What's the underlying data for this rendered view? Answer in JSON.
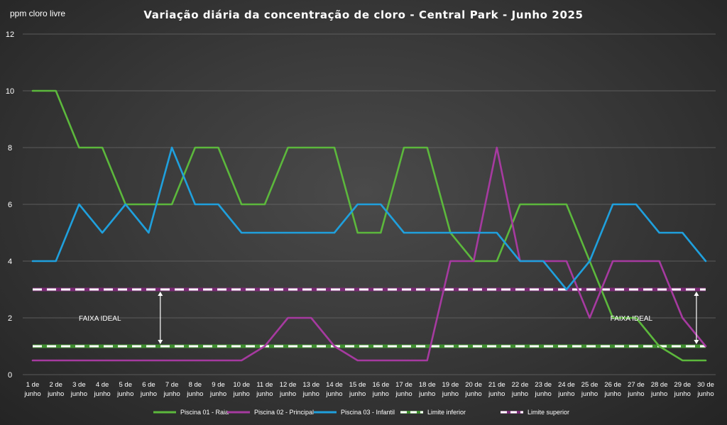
{
  "chart_data": {
    "type": "line",
    "title": "Variação diária da concentração de cloro - Central Park -  Junho 2025",
    "ylabel": "ppm cloro livre",
    "xlabel": "",
    "ylim": [
      0,
      12
    ],
    "yticks": [
      "0",
      "2",
      "4",
      "6",
      "8",
      "10",
      "12"
    ],
    "grid": true,
    "legend_position": "bottom",
    "categories": [
      [
        "1 de",
        "junho"
      ],
      [
        "2 de",
        "junho"
      ],
      [
        "3 de",
        "junho"
      ],
      [
        "4 de",
        "junho"
      ],
      [
        "5 de",
        "junho"
      ],
      [
        "6 de",
        "junho"
      ],
      [
        "7 de",
        "junho"
      ],
      [
        "8 de",
        "junho"
      ],
      [
        "9 de",
        "junho"
      ],
      [
        "10 de",
        "junho"
      ],
      [
        "11 de",
        "junho"
      ],
      [
        "12 de",
        "junho"
      ],
      [
        "13 de",
        "junho"
      ],
      [
        "14 de",
        "junho"
      ],
      [
        "15 de",
        "junho"
      ],
      [
        "16 de",
        "junho"
      ],
      [
        "17 de",
        "junho"
      ],
      [
        "18 de",
        "junho"
      ],
      [
        "19 de",
        "junho"
      ],
      [
        "20 de",
        "junho"
      ],
      [
        "21 de",
        "junho"
      ],
      [
        "22 de",
        "junho"
      ],
      [
        "23 de",
        "junho"
      ],
      [
        "24 de",
        "junho"
      ],
      [
        "25 de",
        "junho"
      ],
      [
        "26 de",
        "junho"
      ],
      [
        "27 de",
        "junho"
      ],
      [
        "28 de",
        "junho"
      ],
      [
        "29 de",
        "junho"
      ],
      [
        "30 de",
        "junho"
      ]
    ],
    "series": [
      {
        "name": "Piscina 01 - Raia",
        "color": "#5cb83c",
        "style": "solid",
        "values": [
          10,
          10,
          8,
          8,
          6,
          6,
          6,
          8,
          8,
          6,
          6,
          8,
          8,
          8,
          5,
          5,
          8,
          8,
          5,
          4,
          4,
          6,
          6,
          6,
          4,
          2,
          2,
          1,
          0.5,
          0.5
        ]
      },
      {
        "name": "Piscina 02 - Principal",
        "color": "#a63aa0",
        "style": "solid",
        "values": [
          0.5,
          0.5,
          0.5,
          0.5,
          0.5,
          0.5,
          0.5,
          0.5,
          0.5,
          0.5,
          1,
          2,
          2,
          1,
          0.5,
          0.5,
          0.5,
          0.5,
          4,
          4,
          8,
          4,
          4,
          4,
          2,
          4,
          4,
          4,
          2,
          1
        ]
      },
      {
        "name": "Piscina 03 - Infantil",
        "color": "#1fa0dd",
        "style": "solid",
        "values": [
          4,
          4,
          6,
          5,
          6,
          5,
          8,
          6,
          6,
          5,
          5,
          5,
          5,
          5,
          6,
          6,
          5,
          5,
          5,
          5,
          5,
          4,
          4,
          3,
          4,
          6,
          6,
          5,
          5,
          4
        ]
      },
      {
        "name": "Limite inferior",
        "color": "#ffffff",
        "under_color": "#3f8f2f",
        "style": "dashed",
        "values": [
          1,
          1,
          1,
          1,
          1,
          1,
          1,
          1,
          1,
          1,
          1,
          1,
          1,
          1,
          1,
          1,
          1,
          1,
          1,
          1,
          1,
          1,
          1,
          1,
          1,
          1,
          1,
          1,
          1,
          1
        ]
      },
      {
        "name": "Limite superior",
        "color": "#ffffff",
        "under_color": "#7a2b75",
        "style": "dashed",
        "values": [
          3,
          3,
          3,
          3,
          3,
          3,
          3,
          3,
          3,
          3,
          3,
          3,
          3,
          3,
          3,
          3,
          3,
          3,
          3,
          3,
          3,
          3,
          3,
          3,
          3,
          3,
          3,
          3,
          3,
          3
        ]
      }
    ],
    "annotations": [
      {
        "text": "FAIXA IDEAL",
        "day_index": 2.9,
        "y": 2
      },
      {
        "text": "FAIXA IDEAL",
        "day_index": 25.8,
        "y": 2
      }
    ],
    "range_arrows": [
      {
        "day_index": 5.5,
        "from": 1,
        "to": 3
      },
      {
        "day_index": 28.6,
        "from": 1,
        "to": 3
      }
    ]
  }
}
